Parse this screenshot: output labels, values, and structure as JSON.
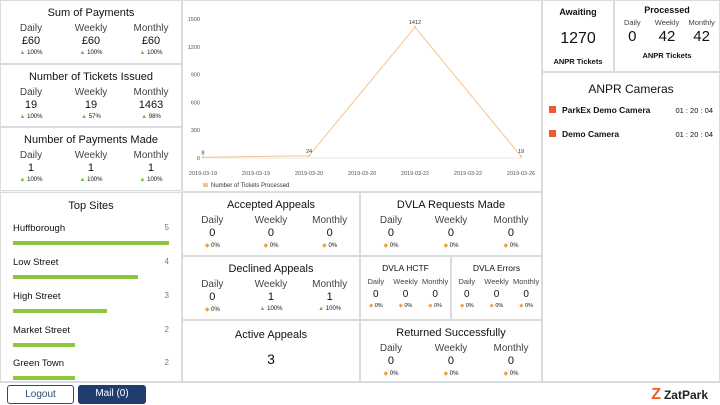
{
  "sum_payments": {
    "title": "Sum of Payments",
    "cells": [
      {
        "label": "Daily",
        "value": "£60",
        "pct": "100%"
      },
      {
        "label": "Weekly",
        "value": "£60",
        "pct": "100%"
      },
      {
        "label": "Monthly",
        "value": "£60",
        "pct": "100%"
      }
    ]
  },
  "tickets_issued": {
    "title": "Number of Tickets Issued",
    "cells": [
      {
        "label": "Daily",
        "value": "19",
        "pct": "100%"
      },
      {
        "label": "Weekly",
        "value": "19",
        "pct": "57%"
      },
      {
        "label": "Monthly",
        "value": "1463",
        "pct": "98%"
      }
    ]
  },
  "payments_made": {
    "title": "Number of Payments Made",
    "cells": [
      {
        "label": "Daily",
        "value": "1",
        "pct": "100%"
      },
      {
        "label": "Weekly",
        "value": "1",
        "pct": "100%"
      },
      {
        "label": "Monthly",
        "value": "1",
        "pct": "100%"
      }
    ]
  },
  "chart_data": {
    "type": "line",
    "x": [
      "2019-03-19",
      "2019-03-19",
      "2019-03-20",
      "2019-03-20",
      "2019-03-22",
      "2019-03-22",
      "2019-03-26"
    ],
    "series": [
      {
        "name": "Number of Tickets Processed",
        "values": [
          8,
          null,
          24,
          null,
          1412,
          null,
          19
        ],
        "color": "#f5c48a"
      }
    ],
    "ylim": [
      0,
      1500
    ],
    "yticks": [
      "1500",
      "1200",
      "900",
      "600",
      "300",
      "0"
    ],
    "grid": false,
    "legend": "bottom-left"
  },
  "awaiting": {
    "title": "Awaiting",
    "value": "1270",
    "sub": "ANPR Tickets"
  },
  "processed": {
    "title": "Processed",
    "cells": [
      {
        "label": "Daily",
        "value": "0"
      },
      {
        "label": "Weekly",
        "value": "42"
      },
      {
        "label": "Monthly",
        "value": "42"
      }
    ],
    "sub": "ANPR Tickets"
  },
  "cameras": {
    "title": "ANPR Cameras",
    "items": [
      {
        "name": "ParkEx Demo Camera",
        "time": "01 : 20 : 04"
      },
      {
        "name": "Demo Camera",
        "time": "01 : 20 : 04"
      }
    ],
    "status_color": "#f05a28"
  },
  "top_sites": {
    "title": "Top Sites",
    "items": [
      {
        "name": "Huffborough",
        "count": 5,
        "fill": 1.0
      },
      {
        "name": "Low Street",
        "count": 4,
        "fill": 0.8
      },
      {
        "name": "High Street",
        "count": 3,
        "fill": 0.6
      },
      {
        "name": "Market Street",
        "count": 2,
        "fill": 0.4
      },
      {
        "name": "Green Town",
        "count": 2,
        "fill": 0.4
      }
    ]
  },
  "accepted": {
    "title": "Accepted Appeals",
    "cells": [
      {
        "label": "Daily",
        "value": "0",
        "pct": "0%"
      },
      {
        "label": "Weekly",
        "value": "0",
        "pct": "0%"
      },
      {
        "label": "Monthly",
        "value": "0",
        "pct": "0%"
      }
    ]
  },
  "dvla_requests": {
    "title": "DVLA Requests Made",
    "cells": [
      {
        "label": "Daily",
        "value": "0",
        "pct": "0%"
      },
      {
        "label": "Weekly",
        "value": "0",
        "pct": "0%"
      },
      {
        "label": "Monthly",
        "value": "0",
        "pct": "0%"
      }
    ]
  },
  "declined": {
    "title": "Declined Appeals",
    "cells": [
      {
        "label": "Daily",
        "value": "0",
        "pct": "0%"
      },
      {
        "label": "Weekly",
        "value": "1",
        "pct": "100%"
      },
      {
        "label": "Monthly",
        "value": "1",
        "pct": "100%"
      }
    ]
  },
  "dvla_hctf": {
    "title": "DVLA HCTF",
    "cells": [
      {
        "label": "Daily",
        "value": "0",
        "pct": "0%"
      },
      {
        "label": "Weekly",
        "value": "0",
        "pct": "0%"
      },
      {
        "label": "Monthly",
        "value": "0",
        "pct": "0%"
      }
    ]
  },
  "dvla_errors": {
    "title": "DVLA Errors",
    "cells": [
      {
        "label": "Daily",
        "value": "0",
        "pct": "0%"
      },
      {
        "label": "Weekly",
        "value": "0",
        "pct": "0%"
      },
      {
        "label": "Monthly",
        "value": "0",
        "pct": "0%"
      }
    ]
  },
  "active": {
    "title": "Active Appeals",
    "value": "3"
  },
  "returned": {
    "title": "Returned Successfully",
    "cells": [
      {
        "label": "Daily",
        "value": "0",
        "pct": "0%"
      },
      {
        "label": "Weekly",
        "value": "0",
        "pct": "0%"
      },
      {
        "label": "Monthly",
        "value": "0",
        "pct": "0%"
      }
    ]
  },
  "footer": {
    "logout": "Logout",
    "mail": "Mail (0)",
    "brand_z": "Z",
    "brand": "ZatPark",
    "brand_color": "#f05a28"
  }
}
